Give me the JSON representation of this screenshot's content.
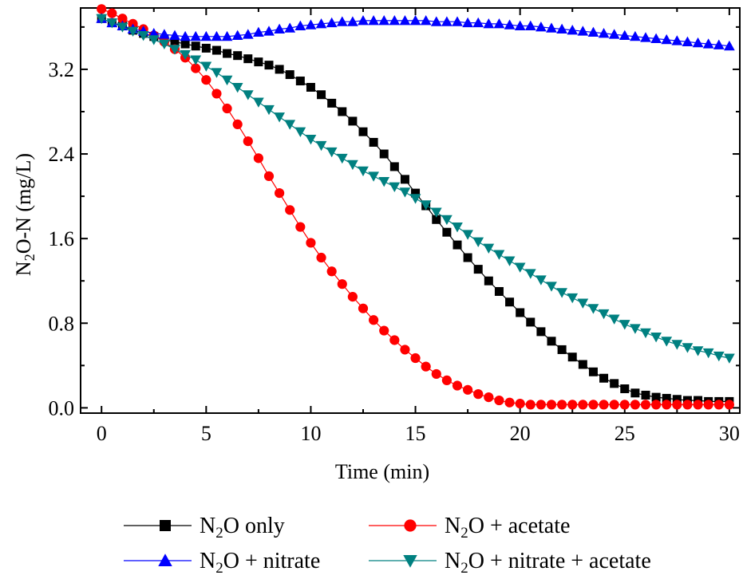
{
  "chart_data": {
    "type": "line",
    "xlabel": "Time (min)",
    "ylabel": {
      "pre": "N",
      "sub": "2",
      "post": "O-N (mg/L)"
    },
    "xlim": [
      -1,
      30.5
    ],
    "ylim": [
      -0.05,
      3.78
    ],
    "xticks": [
      "0",
      "5",
      "10",
      "15",
      "20",
      "25",
      "30"
    ],
    "yticks": [
      "0.0",
      "0.8",
      "1.6",
      "2.4",
      "3.2"
    ],
    "legend_position": "bottom",
    "series": [
      {
        "name": {
          "pre": "N",
          "sub": "2",
          "post": "O only"
        },
        "color": "#000000",
        "marker": "square",
        "x": [
          0,
          0.5,
          1,
          1.5,
          2,
          2.5,
          3,
          3.5,
          4,
          4.5,
          5,
          5.5,
          6,
          6.5,
          7,
          7.5,
          8,
          8.5,
          9,
          9.5,
          10,
          10.5,
          11,
          11.5,
          12,
          12.5,
          13,
          13.5,
          14,
          14.5,
          15,
          15.5,
          16,
          16.5,
          17,
          17.5,
          18,
          18.5,
          19,
          19.5,
          20,
          20.5,
          21,
          21.5,
          22,
          22.5,
          23,
          23.5,
          24,
          24.5,
          25,
          25.5,
          26,
          26.5,
          27,
          27.5,
          28,
          28.5,
          29,
          29.5,
          30
        ],
        "y": [
          3.68,
          3.64,
          3.61,
          3.57,
          3.54,
          3.51,
          3.48,
          3.46,
          3.44,
          3.42,
          3.4,
          3.38,
          3.35,
          3.33,
          3.3,
          3.27,
          3.24,
          3.2,
          3.15,
          3.09,
          3.03,
          2.96,
          2.88,
          2.8,
          2.71,
          2.61,
          2.51,
          2.4,
          2.28,
          2.16,
          2.03,
          1.91,
          1.78,
          1.66,
          1.54,
          1.42,
          1.31,
          1.2,
          1.1,
          1.0,
          0.9,
          0.81,
          0.72,
          0.63,
          0.55,
          0.48,
          0.41,
          0.34,
          0.28,
          0.23,
          0.18,
          0.14,
          0.12,
          0.1,
          0.09,
          0.08,
          0.07,
          0.07,
          0.06,
          0.06,
          0.06
        ]
      },
      {
        "name": {
          "pre": "N",
          "sub": "2",
          "post": "O + acetate"
        },
        "color": "#ff0000",
        "marker": "circle",
        "x": [
          0,
          0.5,
          1,
          1.5,
          2,
          2.5,
          3,
          3.5,
          4,
          4.5,
          5,
          5.5,
          6,
          6.5,
          7,
          7.5,
          8,
          8.5,
          9,
          9.5,
          10,
          10.5,
          11,
          11.5,
          12,
          12.5,
          13,
          13.5,
          14,
          14.5,
          15,
          15.5,
          16,
          16.5,
          17,
          17.5,
          18,
          18.5,
          19,
          19.5,
          20,
          20.5,
          21,
          21.5,
          22,
          22.5,
          23,
          23.5,
          24,
          24.5,
          25,
          25.5,
          26,
          26.5,
          27,
          27.5,
          28,
          28.5,
          29,
          29.5,
          30
        ],
        "y": [
          3.77,
          3.73,
          3.68,
          3.63,
          3.58,
          3.52,
          3.46,
          3.39,
          3.31,
          3.21,
          3.1,
          2.97,
          2.83,
          2.68,
          2.52,
          2.36,
          2.19,
          2.03,
          1.87,
          1.71,
          1.56,
          1.42,
          1.29,
          1.17,
          1.05,
          0.94,
          0.83,
          0.73,
          0.64,
          0.55,
          0.47,
          0.39,
          0.32,
          0.26,
          0.21,
          0.17,
          0.13,
          0.1,
          0.07,
          0.05,
          0.04,
          0.03,
          0.03,
          0.03,
          0.03,
          0.03,
          0.03,
          0.03,
          0.03,
          0.03,
          0.03,
          0.03,
          0.03,
          0.03,
          0.03,
          0.03,
          0.03,
          0.03,
          0.03,
          0.03,
          0.03
        ]
      },
      {
        "name": {
          "pre": "N",
          "sub": "2",
          "post": "O + nitrate"
        },
        "color": "#0000ff",
        "marker": "triangle-up",
        "x": [
          0,
          0.5,
          1,
          1.5,
          2,
          2.5,
          3,
          3.5,
          4,
          4.5,
          5,
          5.5,
          6,
          6.5,
          7,
          7.5,
          8,
          8.5,
          9,
          9.5,
          10,
          10.5,
          11,
          11.5,
          12,
          12.5,
          13,
          13.5,
          14,
          14.5,
          15,
          15.5,
          16,
          16.5,
          17,
          17.5,
          18,
          18.5,
          19,
          19.5,
          20,
          20.5,
          21,
          21.5,
          22,
          22.5,
          23,
          23.5,
          24,
          24.5,
          25,
          25.5,
          26,
          26.5,
          27,
          27.5,
          28,
          28.5,
          29,
          29.5,
          30
        ],
        "y": [
          3.68,
          3.64,
          3.61,
          3.58,
          3.56,
          3.54,
          3.53,
          3.52,
          3.51,
          3.51,
          3.51,
          3.51,
          3.51,
          3.52,
          3.53,
          3.55,
          3.56,
          3.58,
          3.59,
          3.61,
          3.62,
          3.63,
          3.64,
          3.65,
          3.65,
          3.66,
          3.66,
          3.66,
          3.66,
          3.66,
          3.66,
          3.66,
          3.65,
          3.65,
          3.65,
          3.64,
          3.64,
          3.63,
          3.63,
          3.62,
          3.61,
          3.61,
          3.6,
          3.59,
          3.58,
          3.57,
          3.56,
          3.55,
          3.54,
          3.53,
          3.52,
          3.51,
          3.5,
          3.49,
          3.48,
          3.47,
          3.46,
          3.45,
          3.44,
          3.43,
          3.42
        ]
      },
      {
        "name": {
          "pre": "N",
          "sub": "2",
          "post": "O + nitrate + acetate"
        },
        "color": "#008080",
        "marker": "triangle-down",
        "x": [
          0,
          0.5,
          1,
          1.5,
          2,
          2.5,
          3,
          3.5,
          4,
          4.5,
          5,
          5.5,
          6,
          6.5,
          7,
          7.5,
          8,
          8.5,
          9,
          9.5,
          10,
          10.5,
          11,
          11.5,
          12,
          12.5,
          13,
          13.5,
          14,
          14.5,
          15,
          15.5,
          16,
          16.5,
          17,
          17.5,
          18,
          18.5,
          19,
          19.5,
          20,
          20.5,
          21,
          21.5,
          22,
          22.5,
          23,
          23.5,
          24,
          24.5,
          25,
          25.5,
          26,
          26.5,
          27,
          27.5,
          28,
          28.5,
          29,
          29.5,
          30
        ],
        "y": [
          3.68,
          3.64,
          3.6,
          3.56,
          3.52,
          3.48,
          3.44,
          3.39,
          3.34,
          3.29,
          3.23,
          3.17,
          3.1,
          3.03,
          2.96,
          2.89,
          2.82,
          2.75,
          2.68,
          2.61,
          2.54,
          2.48,
          2.42,
          2.36,
          2.3,
          2.24,
          2.19,
          2.14,
          2.09,
          2.04,
          1.98,
          1.92,
          1.85,
          1.78,
          1.71,
          1.64,
          1.57,
          1.51,
          1.45,
          1.39,
          1.33,
          1.27,
          1.21,
          1.15,
          1.09,
          1.04,
          0.99,
          0.94,
          0.89,
          0.84,
          0.79,
          0.75,
          0.71,
          0.67,
          0.63,
          0.6,
          0.57,
          0.54,
          0.52,
          0.49,
          0.47
        ]
      }
    ]
  }
}
